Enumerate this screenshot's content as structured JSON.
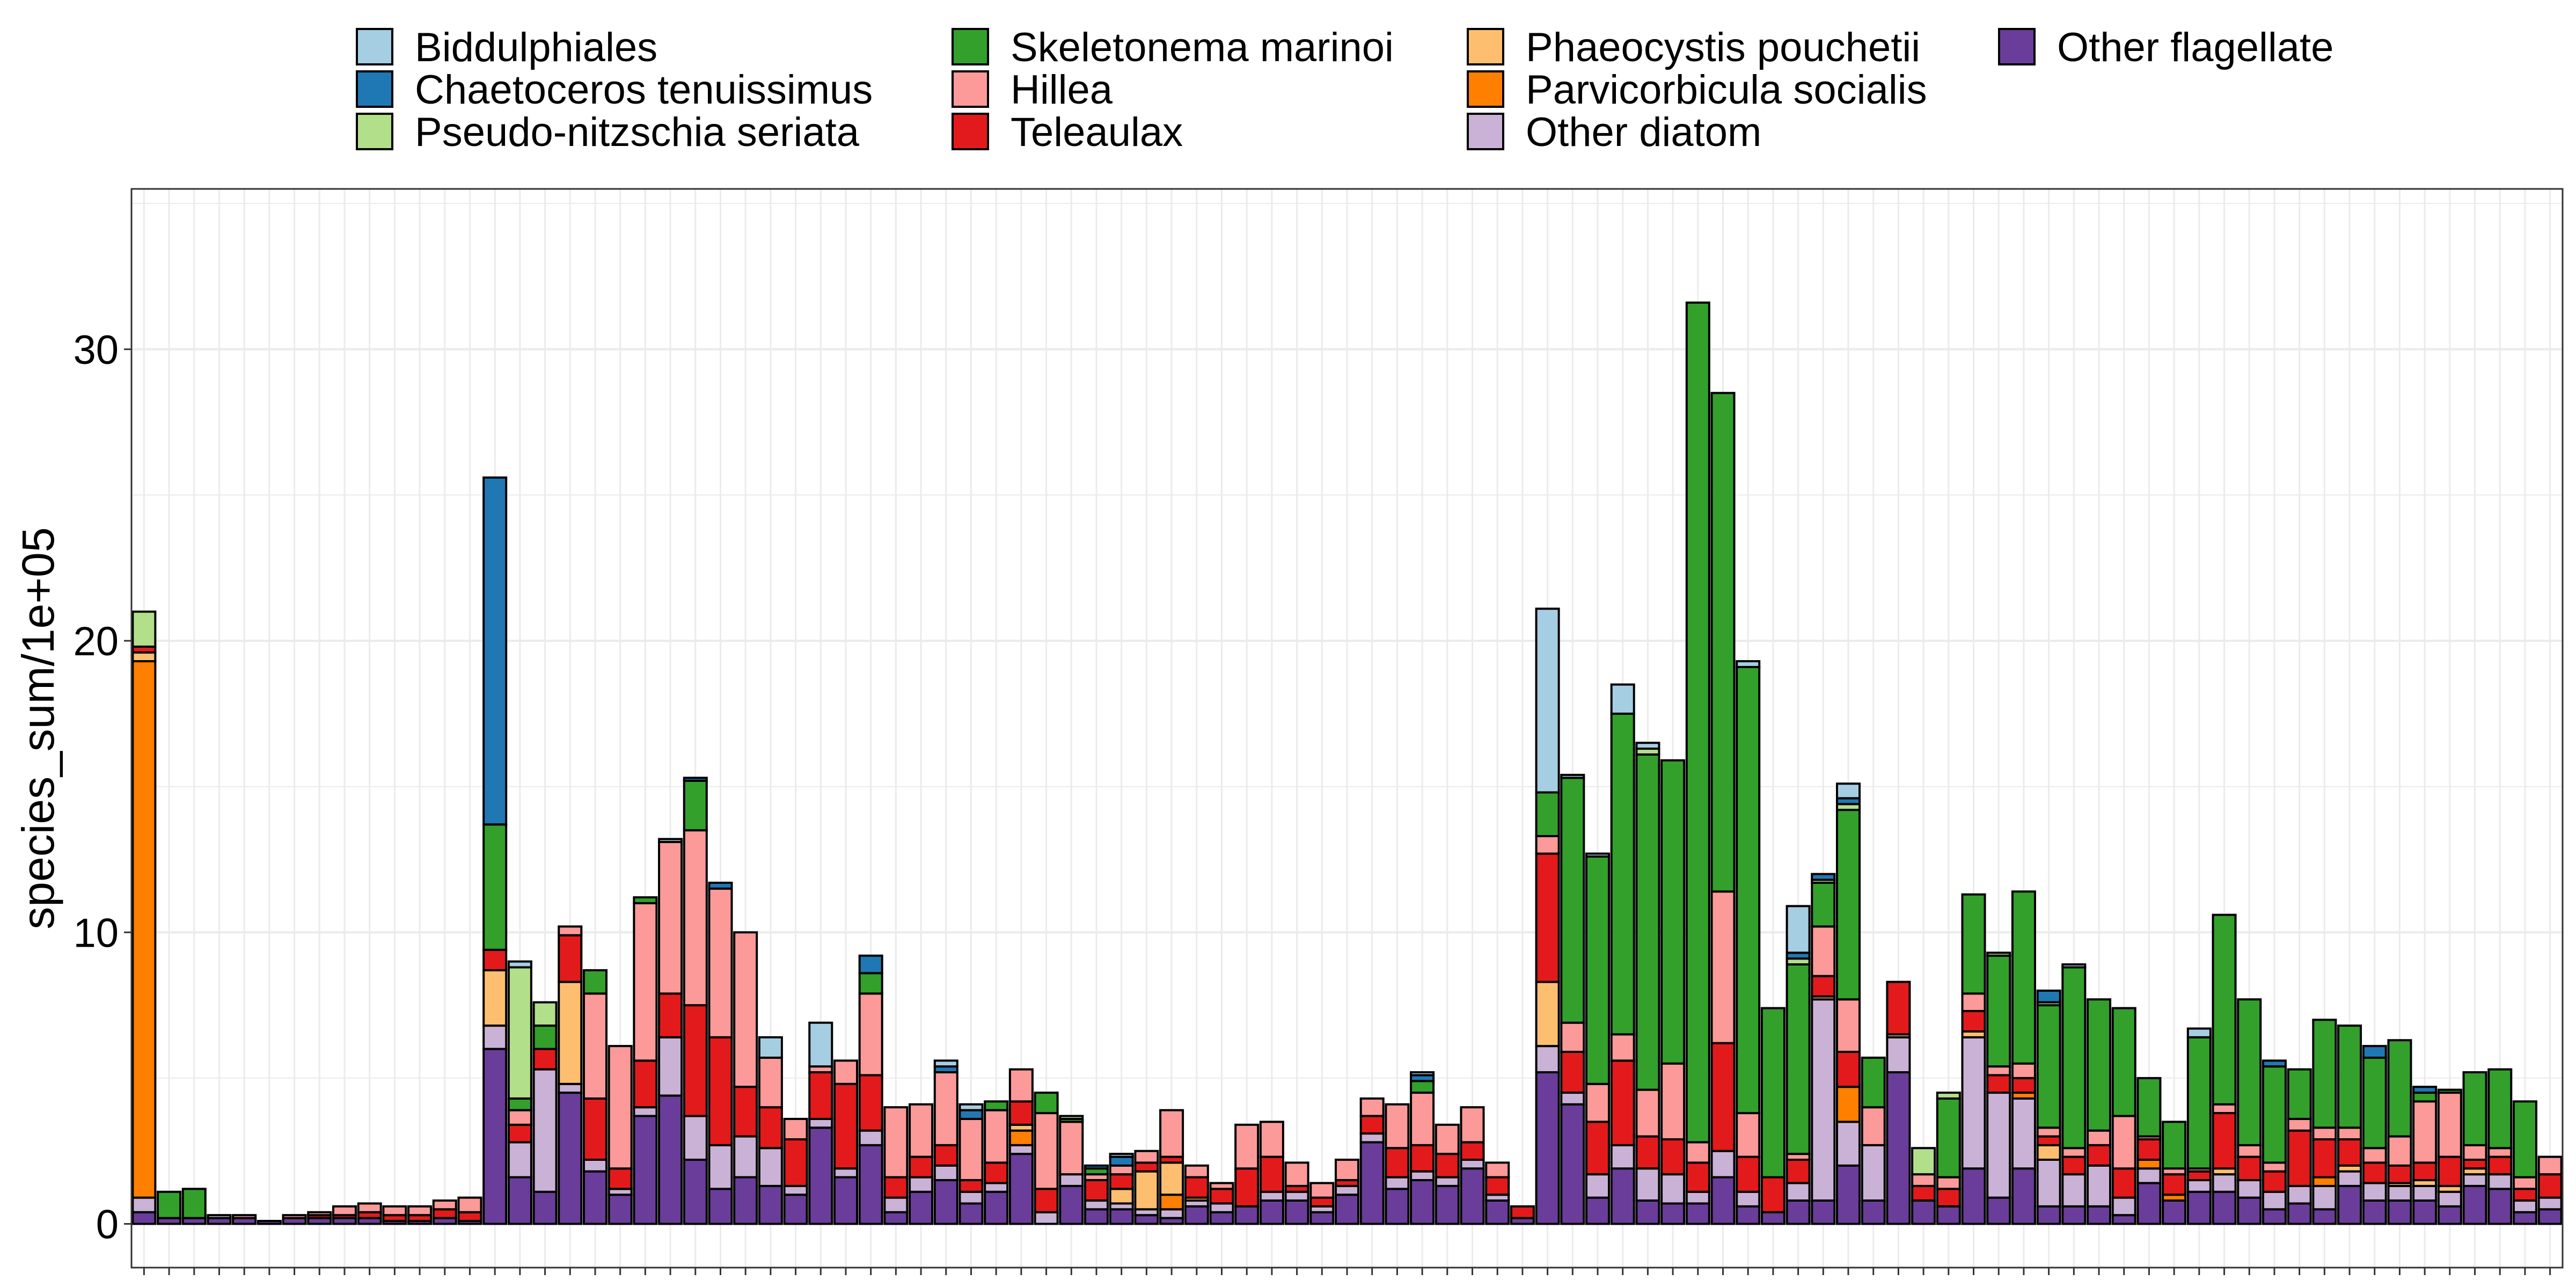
{
  "chart_data": {
    "type": "bar",
    "stacked": true,
    "title": "",
    "xlabel": "",
    "ylabel": "species_sum/1e+05",
    "ylim": [
      -1.5,
      35.5
    ],
    "yticks": [
      0,
      10,
      20,
      30
    ],
    "ytick_labels": [
      "0",
      "10",
      "20",
      "30"
    ],
    "grid": true,
    "legend_position": "top",
    "x_tick_labels": "none",
    "series": [
      {
        "name": "Biddulphiales",
        "color": "#a6cee3",
        "values": [
          0,
          0,
          0,
          0,
          0,
          0,
          0,
          0,
          0,
          0,
          0,
          0,
          0,
          0,
          0,
          0.2,
          0,
          0,
          0,
          0,
          0,
          0.1,
          0,
          0,
          0,
          0.7,
          0,
          1.5,
          0,
          0,
          0,
          0,
          0.2,
          0.2,
          0,
          0,
          0,
          0,
          0,
          0.1,
          0,
          0,
          0,
          0,
          0,
          0,
          0,
          0,
          0,
          0,
          0,
          0.1,
          0,
          0,
          0,
          0,
          6.3,
          0.1,
          0.1,
          1.0,
          0.2,
          0,
          0,
          0,
          0.2,
          0,
          1.6,
          0,
          0.5,
          0,
          0,
          0,
          0,
          0,
          0,
          0,
          0,
          0.1,
          0,
          0,
          0,
          0,
          0.3,
          0,
          0,
          0,
          0,
          0,
          0,
          0,
          0,
          0,
          0,
          0,
          0,
          0,
          0
        ]
      },
      {
        "name": "Chaetoceros tenuissimus",
        "color": "#1f78b4",
        "values": [
          0,
          0,
          0,
          0,
          0,
          0,
          0,
          0,
          0,
          0,
          0,
          0,
          0,
          0,
          11.9,
          0,
          0,
          0,
          0,
          0,
          0,
          0,
          0.1,
          0.2,
          0,
          0,
          0,
          0,
          0,
          0.6,
          0,
          0,
          0.2,
          0.3,
          0,
          0,
          0,
          0,
          0.1,
          0.3,
          0,
          0,
          0,
          0,
          0,
          0,
          0,
          0,
          0,
          0,
          0,
          0.2,
          0,
          0,
          0,
          0,
          0,
          0,
          0,
          0,
          0,
          0,
          0,
          0,
          0,
          0,
          0.2,
          0.2,
          0.2,
          0,
          0,
          0,
          0,
          0,
          0,
          0,
          0.4,
          0,
          0,
          0,
          0,
          0,
          0,
          0,
          0,
          0.2,
          0,
          0,
          0,
          0.4,
          0,
          0.2,
          0,
          0,
          0,
          0,
          0
        ]
      },
      {
        "name": "Pseudo-nitzschia seriata",
        "color": "#b2df8a",
        "values": [
          1.2,
          0,
          0,
          0,
          0,
          0,
          0,
          0,
          0,
          0,
          0,
          0,
          0,
          0,
          0,
          4.5,
          0.8,
          0,
          0,
          0,
          0,
          0,
          0,
          0,
          0,
          0,
          0,
          0,
          0,
          0,
          0,
          0,
          0,
          0,
          0,
          0,
          0,
          0.1,
          0,
          0,
          0,
          0,
          0,
          0,
          0,
          0,
          0,
          0,
          0,
          0,
          0,
          0,
          0,
          0,
          0,
          0,
          0,
          0,
          0,
          0,
          0.2,
          0,
          0,
          0,
          0,
          0,
          0.2,
          0.1,
          0.2,
          0,
          0,
          0.9,
          0.2,
          0,
          0.1,
          0,
          0.1,
          0,
          0,
          0,
          0,
          0,
          0,
          0,
          0,
          0,
          0,
          0,
          0,
          0,
          0,
          0,
          0,
          0,
          0,
          0,
          0
        ]
      },
      {
        "name": "Skeletonema marinoi",
        "color": "#33a02c",
        "values": [
          0,
          0.9,
          1.0,
          0,
          0,
          0,
          0,
          0,
          0,
          0,
          0,
          0,
          0,
          0,
          4.3,
          0.4,
          0.8,
          0,
          0.8,
          0,
          0.2,
          0,
          1.7,
          0,
          0,
          0,
          0,
          0,
          0,
          0.7,
          0,
          0,
          0,
          0,
          0.3,
          0,
          0.7,
          0.1,
          0.2,
          0,
          0,
          0,
          0,
          0,
          0,
          0,
          0,
          0,
          0,
          0,
          0,
          0.4,
          0,
          0,
          0,
          0,
          1.5,
          8.4,
          7.8,
          11.0,
          11.5,
          10.4,
          28.8,
          17.1,
          15.3,
          5.8,
          6.5,
          1.5,
          6.5,
          1.7,
          0,
          0,
          2.7,
          3.4,
          3.8,
          5.9,
          4.2,
          6.2,
          4.5,
          3.7,
          2.0,
          1.6,
          4.5,
          6.5,
          5.0,
          3.3,
          1.7,
          3.7,
          3.5,
          3.1,
          3.3,
          0.3,
          0.1,
          2.5,
          2.7,
          2.6
        ]
      },
      {
        "name": "Hillea",
        "color": "#fb9a99",
        "values": [
          0,
          0,
          0,
          0,
          0.1,
          0,
          0.1,
          0.1,
          0.3,
          0.3,
          0.3,
          0.3,
          0.3,
          0.5,
          0,
          0.5,
          0,
          0.3,
          3.6,
          4.2,
          5.4,
          5.2,
          6.0,
          5.1,
          5.3,
          1.7,
          0.7,
          0.2,
          0.8,
          2.8,
          2.4,
          1.8,
          2.5,
          2.1,
          1.8,
          1.1,
          2.6,
          1.8,
          0.2,
          0.3,
          0.4,
          1.6,
          0.4,
          0.2,
          1.5,
          1.2,
          0.8,
          0.5,
          0.7,
          0.6,
          1.5,
          1.8,
          1.0,
          1.2,
          0.5,
          0,
          0.6,
          1.0,
          1.3,
          0.9,
          1.6,
          2.6,
          0.7,
          5.2,
          1.5,
          0,
          0.2,
          1.7,
          1.8,
          1.3,
          0,
          0.4,
          0.4,
          0.6,
          0.3,
          0.5,
          0.3,
          0.3,
          0.5,
          1.8,
          0.1,
          0.2,
          0.1,
          0.3,
          0.4,
          0.3,
          0.4,
          0.4,
          0.4,
          0.5,
          1.0,
          2.1,
          2.2,
          0.5,
          0.3,
          0.4,
          0.6
        ]
      },
      {
        "name": "Teleaulax",
        "color": "#e31a1c",
        "values": [
          0.2,
          0,
          0,
          0,
          0,
          0,
          0,
          0.1,
          0.1,
          0.2,
          0.2,
          0.2,
          0.3,
          0.3,
          0.7,
          0.6,
          0.7,
          1.6,
          2.1,
          0.7,
          1.6,
          1.5,
          3.8,
          3.7,
          1.7,
          1.4,
          1.6,
          1.6,
          2.9,
          1.9,
          0.7,
          0.7,
          0.7,
          0.4,
          0.7,
          0.8,
          0.8,
          0,
          0.7,
          0.5,
          0.3,
          0.2,
          0.7,
          0.5,
          1.3,
          1.2,
          0.2,
          0.3,
          0.2,
          0.6,
          1.0,
          0.9,
          0.8,
          0.6,
          0.6,
          0.4,
          4.4,
          1.4,
          1.8,
          2.9,
          1.1,
          1.2,
          1.0,
          3.7,
          1.2,
          1.2,
          0.8,
          0.7,
          1.2,
          0,
          1.8,
          0.5,
          0.6,
          0.7,
          0.6,
          0.5,
          0.3,
          0.6,
          0.7,
          1.0,
          0.7,
          0.7,
          0.3,
          1.9,
          0.8,
          0.7,
          1.9,
          1.3,
          0.9,
          0.7,
          0.6,
          0.6,
          1.0,
          0.3,
          0.6,
          0.4,
          0.8
        ]
      },
      {
        "name": "Phaeocystis pouchetii",
        "color": "#fdbf6f",
        "values": [
          0.3,
          0,
          0,
          0,
          0,
          0,
          0,
          0,
          0,
          0,
          0,
          0,
          0,
          0,
          1.9,
          0,
          0,
          3.5,
          0,
          0,
          0,
          0,
          0,
          0,
          0,
          0,
          0,
          0,
          0,
          0,
          0,
          0,
          0,
          0,
          0,
          0.2,
          0,
          0,
          0,
          0.5,
          1.3,
          1.1,
          0.1,
          0,
          0,
          0,
          0,
          0,
          0,
          0,
          0,
          0,
          0,
          0,
          0,
          0,
          2.2,
          0,
          0,
          0,
          0,
          0,
          0,
          0,
          0,
          0,
          0,
          0.1,
          0,
          0,
          0.1,
          0,
          0,
          0.2,
          0,
          0,
          0.5,
          0,
          0,
          0,
          0,
          0,
          0,
          0.2,
          0,
          0,
          0,
          0,
          0.2,
          0,
          0.1,
          0.2,
          0.2,
          0.2,
          0,
          0,
          0
        ]
      },
      {
        "name": "Parvicorbicula socialis",
        "color": "#ff7f00",
        "values": [
          18.4,
          0,
          0,
          0,
          0,
          0,
          0,
          0,
          0,
          0,
          0,
          0,
          0,
          0,
          0,
          0,
          0,
          0,
          0,
          0,
          0,
          0,
          0,
          0,
          0,
          0,
          0,
          0,
          0,
          0,
          0,
          0,
          0,
          0,
          0,
          0.5,
          0,
          0,
          0,
          0,
          0,
          0.5,
          0,
          0,
          0,
          0,
          0,
          0,
          0,
          0,
          0,
          0,
          0,
          0,
          0,
          0,
          0,
          0,
          0,
          0,
          0,
          0,
          0,
          0,
          0,
          0,
          0,
          0,
          1.2,
          0,
          0,
          0,
          0,
          0,
          0,
          0.2,
          0,
          0,
          0,
          0,
          0.3,
          0.2,
          0,
          0,
          0,
          0,
          0,
          0.3,
          0,
          0,
          0,
          0,
          0,
          0,
          0,
          0,
          0
        ]
      },
      {
        "name": "Other diatom",
        "color": "#cab2d6",
        "values": [
          0.5,
          0,
          0,
          0.1,
          0,
          0,
          0,
          0,
          0,
          0,
          0,
          0,
          0,
          0,
          0.8,
          1.2,
          4.2,
          0.3,
          0.4,
          0.2,
          0.3,
          2.0,
          1.5,
          1.5,
          1.4,
          1.3,
          0.3,
          0.3,
          0.3,
          0.5,
          0.5,
          0.5,
          0.5,
          0.4,
          0.3,
          0.3,
          0.4,
          0.4,
          0.3,
          0.2,
          0.2,
          0.3,
          0.2,
          0.3,
          0,
          0.3,
          0.3,
          0.2,
          0.3,
          0.3,
          0.4,
          0.3,
          0.3,
          0.3,
          0.2,
          0,
          0.9,
          0.4,
          0.8,
          0.8,
          1.1,
          1.0,
          0.4,
          0.9,
          0.5,
          0,
          0.6,
          6.9,
          1.5,
          1.9,
          1.2,
          0,
          0,
          4.5,
          3.6,
          2.4,
          1.6,
          1.1,
          1.4,
          0.6,
          0.5,
          0,
          0.4,
          0.6,
          0.6,
          0.6,
          0.6,
          0.8,
          0.5,
          0.6,
          0.5,
          0.5,
          0.5,
          0.4,
          0.5,
          0.4,
          0.4
        ]
      },
      {
        "name": "Other flagellate",
        "color": "#6a3d9a",
        "values": [
          0.4,
          0.2,
          0.2,
          0.2,
          0.2,
          0.1,
          0.2,
          0.2,
          0.2,
          0.2,
          0.1,
          0.1,
          0.2,
          0.1,
          6.0,
          1.6,
          1.1,
          4.5,
          1.8,
          1.0,
          3.7,
          4.4,
          2.2,
          1.2,
          1.6,
          1.3,
          1.0,
          3.3,
          1.6,
          2.7,
          0.4,
          1.1,
          1.5,
          0.7,
          1.1,
          2.4,
          0,
          1.3,
          0.5,
          0.5,
          0.3,
          0.2,
          0.6,
          0.4,
          0.6,
          0.8,
          0.8,
          0.4,
          1.0,
          2.8,
          1.2,
          1.5,
          1.3,
          1.9,
          0.8,
          0.2,
          5.2,
          4.1,
          0.9,
          1.9,
          0.8,
          0.7,
          0.7,
          1.6,
          0.6,
          0.4,
          0.8,
          0.8,
          2.0,
          0.8,
          5.2,
          0.8,
          0.6,
          1.9,
          0.9,
          1.9,
          0.6,
          0.6,
          0.6,
          0.3,
          1.4,
          0.8,
          1.1,
          1.1,
          0.9,
          0.5,
          0.7,
          0.5,
          1.3,
          0.8,
          0.8,
          0.8,
          0.6,
          1.3,
          1.2,
          0.4,
          0.5
        ]
      }
    ]
  }
}
